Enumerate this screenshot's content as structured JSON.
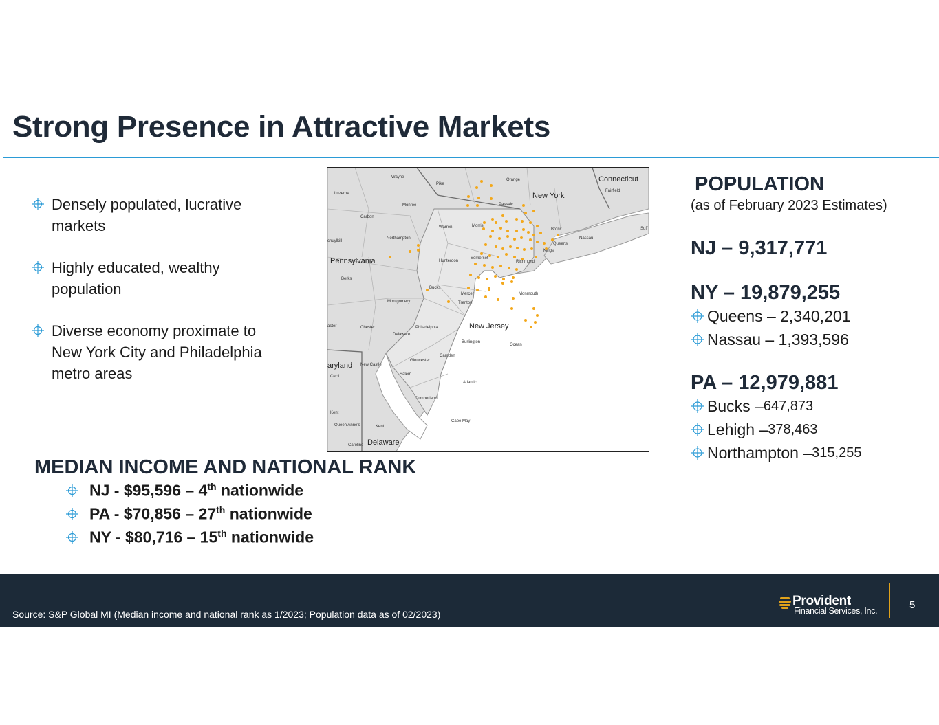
{
  "title": "Strong Presence in Attractive Markets",
  "bullets": [
    "Densely populated, lucrative markets",
    "Highly educated, wealthy population",
    "Diverse economy proximate to New York City and Philadelphia metro areas"
  ],
  "map": {
    "state_labels": [
      "New York",
      "Connecticut",
      "Pennsylvania",
      "New Jersey",
      "Delaware",
      "aryland"
    ],
    "county_labels": [
      "Wayne",
      "Pike",
      "Orange",
      "Fairfield",
      "Luzerne",
      "Monroe",
      "Passaic",
      "Carbon",
      "Warren",
      "Morris",
      "Bronx",
      "Nassau",
      "Queens",
      "Kings",
      "chuylkill",
      "Northampton",
      "Hunterdon",
      "Somerset",
      "Richmond",
      "Berks",
      "Bucks",
      "Mercer",
      "Monmouth",
      "Montgomery",
      "Trenton",
      "Chester",
      "Philadelphia",
      "Delaware",
      "Burlington",
      "Ocean",
      "New Castle",
      "Gloucester",
      "Camden",
      "Cecil",
      "Salem",
      "Atlantic",
      "Cumberland",
      "Kent",
      "Queen Anne's",
      "Cape May",
      "Caroline",
      "Kent",
      "Suff",
      "aster"
    ],
    "branch_color": "#f3a81b"
  },
  "income": {
    "heading": "MEDIAN INCOME AND NATIONAL RANK",
    "rows": [
      {
        "pre": "NJ  - $95,596 – 4",
        "sup": "th",
        "post": " nationwide"
      },
      {
        "pre": "PA - $70,856 – 27",
        "sup": "th",
        "post": " nationwide"
      },
      {
        "pre": "NY - $80,716 – 15",
        "sup": "th",
        "post": " nationwide"
      }
    ]
  },
  "population": {
    "heading": "POPULATION",
    "subheading": "(as of February 2023 Estimates)",
    "nj": "NJ – 9,317,771",
    "ny": "NY – 19,879,255",
    "ny_counties": [
      {
        "name": "Queens – 2,340,201",
        "value": ""
      },
      {
        "name": "Nassau – 1,393,596",
        "value": ""
      }
    ],
    "pa": "PA – 12,979,881",
    "pa_counties": [
      {
        "name": "Bucks – ",
        "value": "647,873"
      },
      {
        "name": "Lehigh – ",
        "value": "378,463"
      },
      {
        "name": "Northampton – ",
        "value": "315,255"
      }
    ]
  },
  "footer": {
    "source": "Source: S&P Global MI (Median income and  national rank as 1/2023; Population data as of 02/2023)",
    "logo_name": "Provident",
    "logo_tagline": "Financial Services, Inc.",
    "page": "5",
    "accent": "#e0a21b"
  },
  "colors": {
    "title": "#1f2a38",
    "rule": "#2b9bd6",
    "footer_bg": "#1c2a38",
    "bullet_icon": "#2b9bd6"
  }
}
